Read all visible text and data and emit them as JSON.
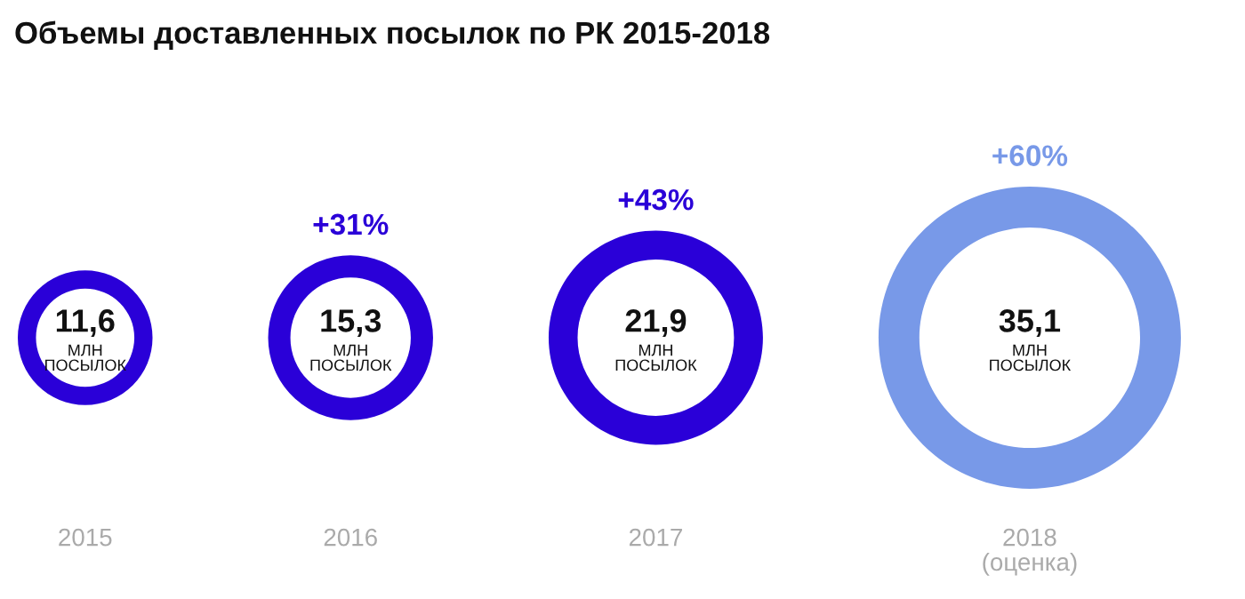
{
  "chart_data": {
    "type": "other",
    "title": "Объемы доставленных посылок по РК 2015-2018",
    "categories": [
      "2015",
      "2016",
      "2017",
      "2018\n(оценка)"
    ],
    "values": [
      11.6,
      15.3,
      21.9,
      35.1
    ],
    "value_labels": [
      "11,6\nМЛН\nПОСЫЛОК",
      "15,3\nМЛН\nПОСЫЛОК",
      "21,9\nМЛН\nПОСЫЛОК",
      "35,1\nМЛН\nПОСЫЛОК"
    ],
    "colors": [
      "#2a00d8",
      "#2a00d8",
      "#2a00d8",
      "#7899e8"
    ],
    "annotations": [
      "+31%",
      "+43%",
      "+60%"
    ]
  }
}
